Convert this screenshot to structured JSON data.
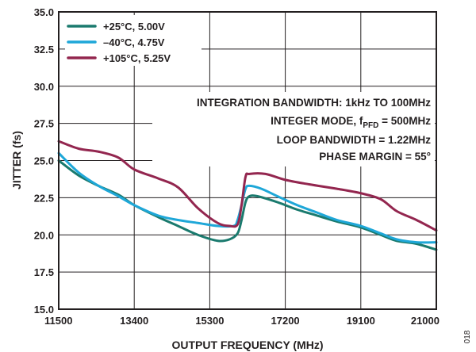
{
  "chart_data": {
    "type": "line",
    "title": "",
    "xlabel": "OUTPUT FREQUENCY (MHz)",
    "ylabel": "JITTER (fs)",
    "xlim": [
      11500,
      21000
    ],
    "ylim": [
      15.0,
      35.0
    ],
    "x_ticks": [
      "11500",
      "13400",
      "15300",
      "17200",
      "19100",
      "21000"
    ],
    "y_ticks": [
      "15.0",
      "17.5",
      "20.0",
      "22.5",
      "25.0",
      "27.5",
      "30.0",
      "32.5",
      "35.0"
    ],
    "grid": true,
    "legend_position": "top-left",
    "series": [
      {
        "name": "+25°C, 5.00V",
        "color": "#1a7a6e",
        "points": [
          [
            11500,
            25.0
          ],
          [
            12000,
            24.0
          ],
          [
            12500,
            23.3
          ],
          [
            13000,
            22.7
          ],
          [
            13400,
            22.0
          ],
          [
            14000,
            21.2
          ],
          [
            14500,
            20.6
          ],
          [
            15000,
            20.0
          ],
          [
            15500,
            19.6
          ],
          [
            15800,
            19.7
          ],
          [
            16000,
            20.1
          ],
          [
            16100,
            21.0
          ],
          [
            16200,
            22.2
          ],
          [
            16300,
            22.6
          ],
          [
            16500,
            22.6
          ],
          [
            17000,
            22.2
          ],
          [
            17500,
            21.7
          ],
          [
            18000,
            21.3
          ],
          [
            18500,
            20.9
          ],
          [
            19100,
            20.5
          ],
          [
            19600,
            20.0
          ],
          [
            20000,
            19.6
          ],
          [
            20500,
            19.4
          ],
          [
            21000,
            19.0
          ]
        ]
      },
      {
        "name": "–40°C, 4.75V",
        "color": "#1ea7d8",
        "points": [
          [
            11500,
            25.5
          ],
          [
            12000,
            24.2
          ],
          [
            12500,
            23.3
          ],
          [
            13000,
            22.6
          ],
          [
            13400,
            22.0
          ],
          [
            14000,
            21.3
          ],
          [
            14500,
            21.0
          ],
          [
            15000,
            20.8
          ],
          [
            15500,
            20.6
          ],
          [
            15900,
            20.6
          ],
          [
            16000,
            21.0
          ],
          [
            16100,
            22.0
          ],
          [
            16200,
            23.1
          ],
          [
            16300,
            23.3
          ],
          [
            16600,
            23.1
          ],
          [
            17000,
            22.6
          ],
          [
            17500,
            22.0
          ],
          [
            18000,
            21.5
          ],
          [
            18500,
            21.0
          ],
          [
            19100,
            20.6
          ],
          [
            19600,
            20.1
          ],
          [
            20000,
            19.7
          ],
          [
            20500,
            19.5
          ],
          [
            21000,
            19.5
          ]
        ]
      },
      {
        "name": "+105°C, 5.25V",
        "color": "#93264f",
        "points": [
          [
            11500,
            26.3
          ],
          [
            12000,
            25.8
          ],
          [
            12500,
            25.6
          ],
          [
            13000,
            25.2
          ],
          [
            13400,
            24.4
          ],
          [
            14000,
            23.8
          ],
          [
            14500,
            23.2
          ],
          [
            15000,
            21.8
          ],
          [
            15500,
            20.8
          ],
          [
            15800,
            20.6
          ],
          [
            16000,
            20.7
          ],
          [
            16100,
            22.0
          ],
          [
            16200,
            23.9
          ],
          [
            16300,
            24.1
          ],
          [
            16700,
            24.1
          ],
          [
            17200,
            23.7
          ],
          [
            17800,
            23.4
          ],
          [
            18500,
            23.1
          ],
          [
            19100,
            22.8
          ],
          [
            19600,
            22.4
          ],
          [
            20000,
            21.6
          ],
          [
            20500,
            21.0
          ],
          [
            21000,
            20.3
          ]
        ]
      }
    ],
    "annotations": {
      "line1": "INTEGRATION BANDWIDTH: 1kHz TO 100MHz",
      "line2_prefix": "INTEGER MODE, f",
      "line2_sub": "PFD",
      "line2_suffix": " = 500MHz",
      "line3": "LOOP BANDWIDTH = 1.22MHz",
      "line4": "PHASE MARGIN = 55°"
    },
    "figure_id": "018"
  }
}
